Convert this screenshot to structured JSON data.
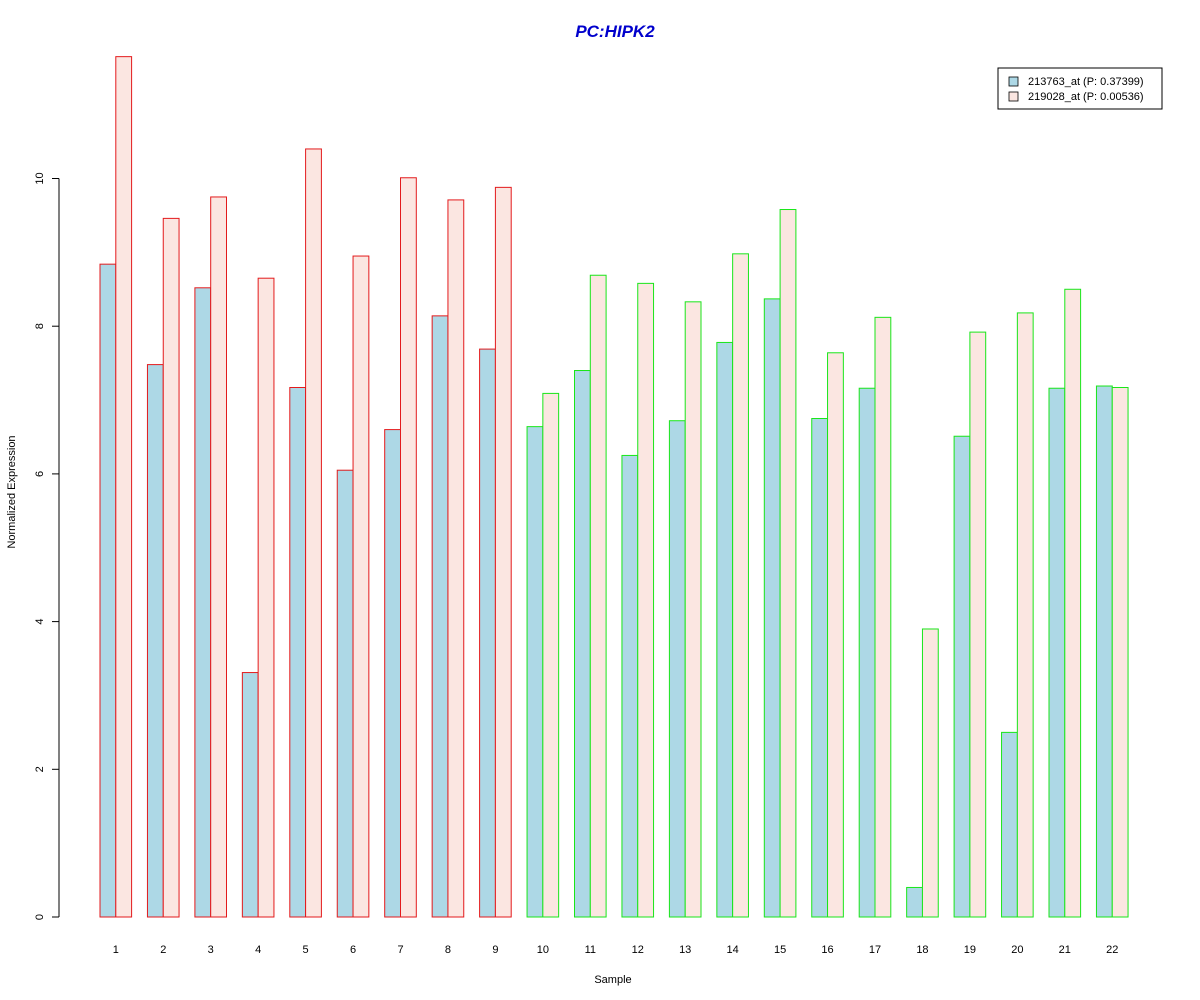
{
  "chart_data": {
    "type": "bar",
    "title": "PC:HIPK2",
    "xlabel": "Sample",
    "ylabel": "Normalized Expression",
    "ylim": [
      0,
      11.7
    ],
    "yticks": [
      0,
      2,
      4,
      6,
      8,
      10
    ],
    "categories": [
      "1",
      "2",
      "3",
      "4",
      "5",
      "6",
      "7",
      "8",
      "9",
      "10",
      "11",
      "12",
      "13",
      "14",
      "15",
      "16",
      "17",
      "18",
      "19",
      "20",
      "21",
      "22"
    ],
    "series": [
      {
        "name": "213763_at (P: 0.37399)",
        "fill": "#add8e6",
        "values": [
          8.84,
          7.48,
          8.52,
          3.31,
          7.17,
          6.05,
          6.6,
          8.14,
          7.69,
          6.64,
          7.4,
          6.25,
          6.72,
          7.78,
          8.37,
          6.75,
          7.16,
          0.4,
          6.51,
          2.5,
          7.16,
          7.19
        ]
      },
      {
        "name": "219028_at (P: 0.00536)",
        "fill": "#fbe6e1",
        "values": [
          11.65,
          9.46,
          9.75,
          8.65,
          10.4,
          8.95,
          10.01,
          9.71,
          9.88,
          7.09,
          8.69,
          8.58,
          8.33,
          8.98,
          9.58,
          7.64,
          8.12,
          3.9,
          7.92,
          8.18,
          8.5,
          7.17
        ]
      }
    ],
    "group_border_colors": [
      "#e31a1c",
      "#e31a1c",
      "#e31a1c",
      "#e31a1c",
      "#e31a1c",
      "#e31a1c",
      "#e31a1c",
      "#e31a1c",
      "#e31a1c",
      "#19e619",
      "#19e619",
      "#19e619",
      "#19e619",
      "#19e619",
      "#19e619",
      "#19e619",
      "#19e619",
      "#19e619",
      "#19e619",
      "#19e619",
      "#19e619",
      "#19e619"
    ],
    "title_color": "#0000cc",
    "legend_position": "top-right",
    "grid": false
  }
}
